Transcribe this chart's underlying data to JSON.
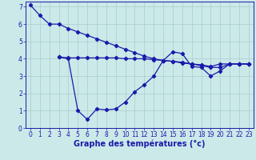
{
  "xlabel": "Graphe des températures (°c)",
  "xlim": [
    -0.5,
    23.5
  ],
  "ylim": [
    0,
    7.3
  ],
  "yticks": [
    0,
    1,
    2,
    3,
    4,
    5,
    6,
    7
  ],
  "xticks": [
    0,
    1,
    2,
    3,
    4,
    5,
    6,
    7,
    8,
    9,
    10,
    11,
    12,
    13,
    14,
    15,
    16,
    17,
    18,
    19,
    20,
    21,
    22,
    23
  ],
  "bg_color": "#cce9e9",
  "grid_color": "#aacccc",
  "line_color": "#1a1aaa",
  "series1_x": [
    0,
    1,
    2,
    3,
    4,
    5,
    6,
    7,
    8,
    9,
    10,
    11,
    12,
    13,
    14,
    15,
    16,
    17,
    18,
    19,
    20,
    21,
    22,
    23
  ],
  "series1_y": [
    7.1,
    6.5,
    6.0,
    6.0,
    5.75,
    5.55,
    5.35,
    5.15,
    4.95,
    4.75,
    4.55,
    4.35,
    4.15,
    4.0,
    3.9,
    3.85,
    3.75,
    3.7,
    3.65,
    3.55,
    3.7,
    3.7,
    3.7,
    3.7
  ],
  "series2_x": [
    3,
    4,
    5,
    6,
    7,
    8,
    9,
    10,
    11,
    12,
    13,
    14,
    15,
    16,
    17,
    18,
    19,
    20,
    21,
    22,
    23
  ],
  "series2_y": [
    4.1,
    4.0,
    1.0,
    0.5,
    1.1,
    1.05,
    1.1,
    1.5,
    2.1,
    2.5,
    3.0,
    3.9,
    4.4,
    4.3,
    3.55,
    3.5,
    3.0,
    3.3,
    3.7,
    3.7,
    3.7
  ],
  "series3_x": [
    3,
    4,
    5,
    6,
    7,
    8,
    9,
    10,
    11,
    12,
    13,
    14,
    15,
    16,
    17,
    18,
    19,
    20,
    21,
    22,
    23
  ],
  "series3_y": [
    4.1,
    4.05,
    4.05,
    4.05,
    4.05,
    4.05,
    4.05,
    4.0,
    4.0,
    4.0,
    3.95,
    3.9,
    3.85,
    3.8,
    3.7,
    3.6,
    3.5,
    3.5,
    3.7,
    3.7,
    3.7
  ],
  "xlabel_fontsize": 7,
  "tick_fontsize": 5.5,
  "linewidth": 0.9,
  "markersize": 2.2
}
